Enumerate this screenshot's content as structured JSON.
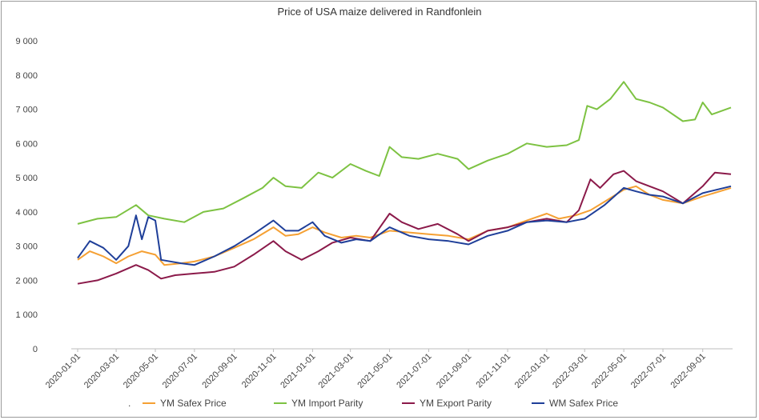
{
  "chart_data": {
    "type": "line",
    "title": "Price of USA maize delivered in Randfonlein",
    "xlabel": "",
    "ylabel": "",
    "ylim": [
      0,
      9000
    ],
    "y_ticks": [
      0,
      1000,
      2000,
      3000,
      4000,
      5000,
      6000,
      7000,
      8000,
      9000
    ],
    "y_tick_labels": [
      "0",
      "1 000",
      "2 000",
      "3 000",
      "4 000",
      "5 000",
      "6 000",
      "7 000",
      "8 000",
      "9 000"
    ],
    "x_range": [
      "2020-01-01",
      "2022-10-15"
    ],
    "x_tick_labels": [
      "2020-01-01",
      "2020-03-01",
      "2020-05-01",
      "2020-07-01",
      "2020-09-01",
      "2020-11-01",
      "2021-01-01",
      "2021-03-01",
      "2021-05-01",
      "2021-07-01",
      "2021-09-01",
      "2021-11-01",
      "2022-01-01",
      "2022-03-01",
      "2022-05-01",
      "2022-07-01",
      "2022-09-01"
    ],
    "grid": false,
    "legend_position": "bottom",
    "legend_marker": ".",
    "series": [
      {
        "name": "YM Safex Price",
        "color": "#f5a033",
        "points": [
          [
            "2020-01-01",
            2600
          ],
          [
            "2020-01-20",
            2850
          ],
          [
            "2020-02-10",
            2700
          ],
          [
            "2020-03-01",
            2500
          ],
          [
            "2020-03-20",
            2700
          ],
          [
            "2020-04-10",
            2850
          ],
          [
            "2020-05-01",
            2750
          ],
          [
            "2020-05-15",
            2450
          ],
          [
            "2020-06-10",
            2500
          ],
          [
            "2020-07-01",
            2550
          ],
          [
            "2020-08-01",
            2700
          ],
          [
            "2020-09-01",
            2950
          ],
          [
            "2020-10-01",
            3200
          ],
          [
            "2020-11-01",
            3550
          ],
          [
            "2020-11-20",
            3300
          ],
          [
            "2020-12-10",
            3350
          ],
          [
            "2021-01-01",
            3550
          ],
          [
            "2021-01-20",
            3400
          ],
          [
            "2021-02-15",
            3250
          ],
          [
            "2021-03-10",
            3300
          ],
          [
            "2021-04-01",
            3250
          ],
          [
            "2021-05-01",
            3450
          ],
          [
            "2021-06-01",
            3400
          ],
          [
            "2021-07-01",
            3350
          ],
          [
            "2021-08-01",
            3300
          ],
          [
            "2021-09-01",
            3200
          ],
          [
            "2021-10-01",
            3450
          ],
          [
            "2021-11-01",
            3550
          ],
          [
            "2021-12-01",
            3750
          ],
          [
            "2022-01-01",
            3950
          ],
          [
            "2022-01-20",
            3800
          ],
          [
            "2022-02-15",
            3900
          ],
          [
            "2022-03-10",
            4050
          ],
          [
            "2022-04-01",
            4300
          ],
          [
            "2022-05-01",
            4650
          ],
          [
            "2022-05-20",
            4750
          ],
          [
            "2022-06-10",
            4500
          ],
          [
            "2022-07-01",
            4350
          ],
          [
            "2022-08-01",
            4250
          ],
          [
            "2022-09-01",
            4450
          ],
          [
            "2022-10-15",
            4700
          ]
        ]
      },
      {
        "name": "YM Import Parity",
        "color": "#7dc242",
        "points": [
          [
            "2020-01-01",
            3650
          ],
          [
            "2020-02-01",
            3800
          ],
          [
            "2020-03-01",
            3850
          ],
          [
            "2020-04-01",
            4200
          ],
          [
            "2020-04-20",
            3900
          ],
          [
            "2020-05-15",
            3800
          ],
          [
            "2020-06-15",
            3700
          ],
          [
            "2020-07-15",
            4000
          ],
          [
            "2020-08-15",
            4100
          ],
          [
            "2020-09-15",
            4400
          ],
          [
            "2020-10-15",
            4700
          ],
          [
            "2020-11-01",
            5000
          ],
          [
            "2020-11-20",
            4750
          ],
          [
            "2020-12-15",
            4700
          ],
          [
            "2021-01-10",
            5150
          ],
          [
            "2021-02-01",
            5000
          ],
          [
            "2021-03-01",
            5400
          ],
          [
            "2021-03-25",
            5200
          ],
          [
            "2021-04-15",
            5050
          ],
          [
            "2021-05-01",
            5900
          ],
          [
            "2021-05-20",
            5600
          ],
          [
            "2021-06-15",
            5550
          ],
          [
            "2021-07-15",
            5700
          ],
          [
            "2021-08-15",
            5550
          ],
          [
            "2021-09-01",
            5250
          ],
          [
            "2021-10-01",
            5500
          ],
          [
            "2021-11-01",
            5700
          ],
          [
            "2021-12-01",
            6000
          ],
          [
            "2022-01-01",
            5900
          ],
          [
            "2022-02-01",
            5950
          ],
          [
            "2022-02-20",
            6100
          ],
          [
            "2022-03-05",
            7100
          ],
          [
            "2022-03-20",
            7000
          ],
          [
            "2022-04-10",
            7300
          ],
          [
            "2022-05-01",
            7800
          ],
          [
            "2022-05-20",
            7300
          ],
          [
            "2022-06-10",
            7200
          ],
          [
            "2022-07-01",
            7050
          ],
          [
            "2022-08-01",
            6650
          ],
          [
            "2022-08-20",
            6700
          ],
          [
            "2022-09-01",
            7200
          ],
          [
            "2022-09-15",
            6850
          ],
          [
            "2022-10-15",
            7050
          ]
        ]
      },
      {
        "name": "YM Export Parity",
        "color": "#8b1a4a",
        "points": [
          [
            "2020-01-01",
            1900
          ],
          [
            "2020-02-01",
            2000
          ],
          [
            "2020-03-01",
            2200
          ],
          [
            "2020-04-01",
            2450
          ],
          [
            "2020-04-20",
            2300
          ],
          [
            "2020-05-10",
            2050
          ],
          [
            "2020-06-01",
            2150
          ],
          [
            "2020-07-01",
            2200
          ],
          [
            "2020-08-01",
            2250
          ],
          [
            "2020-09-01",
            2400
          ],
          [
            "2020-10-01",
            2750
          ],
          [
            "2020-11-01",
            3150
          ],
          [
            "2020-11-20",
            2850
          ],
          [
            "2020-12-15",
            2600
          ],
          [
            "2021-01-10",
            2850
          ],
          [
            "2021-02-01",
            3100
          ],
          [
            "2021-03-01",
            3250
          ],
          [
            "2021-04-01",
            3150
          ],
          [
            "2021-05-01",
            3950
          ],
          [
            "2021-05-20",
            3700
          ],
          [
            "2021-06-15",
            3500
          ],
          [
            "2021-07-15",
            3650
          ],
          [
            "2021-08-15",
            3350
          ],
          [
            "2021-09-01",
            3150
          ],
          [
            "2021-10-01",
            3450
          ],
          [
            "2021-11-01",
            3550
          ],
          [
            "2021-12-01",
            3700
          ],
          [
            "2022-01-01",
            3800
          ],
          [
            "2022-02-01",
            3700
          ],
          [
            "2022-02-20",
            4050
          ],
          [
            "2022-03-10",
            4950
          ],
          [
            "2022-03-25",
            4700
          ],
          [
            "2022-04-15",
            5100
          ],
          [
            "2022-05-01",
            5200
          ],
          [
            "2022-05-20",
            4900
          ],
          [
            "2022-06-10",
            4750
          ],
          [
            "2022-07-01",
            4600
          ],
          [
            "2022-08-01",
            4250
          ],
          [
            "2022-09-01",
            4750
          ],
          [
            "2022-09-20",
            5150
          ],
          [
            "2022-10-15",
            5100
          ]
        ]
      },
      {
        "name": "WM Safex Price",
        "color": "#1f3f99",
        "points": [
          [
            "2020-01-01",
            2650
          ],
          [
            "2020-01-20",
            3150
          ],
          [
            "2020-02-10",
            2950
          ],
          [
            "2020-03-01",
            2600
          ],
          [
            "2020-03-20",
            3000
          ],
          [
            "2020-04-01",
            3900
          ],
          [
            "2020-04-10",
            3200
          ],
          [
            "2020-04-20",
            3850
          ],
          [
            "2020-05-01",
            3750
          ],
          [
            "2020-05-10",
            2600
          ],
          [
            "2020-06-10",
            2500
          ],
          [
            "2020-07-01",
            2450
          ],
          [
            "2020-08-01",
            2700
          ],
          [
            "2020-09-01",
            3000
          ],
          [
            "2020-10-01",
            3350
          ],
          [
            "2020-11-01",
            3750
          ],
          [
            "2020-11-20",
            3450
          ],
          [
            "2020-12-10",
            3450
          ],
          [
            "2021-01-01",
            3700
          ],
          [
            "2021-01-20",
            3300
          ],
          [
            "2021-02-15",
            3100
          ],
          [
            "2021-03-10",
            3200
          ],
          [
            "2021-04-01",
            3150
          ],
          [
            "2021-05-01",
            3550
          ],
          [
            "2021-06-01",
            3300
          ],
          [
            "2021-07-01",
            3200
          ],
          [
            "2021-08-01",
            3150
          ],
          [
            "2021-09-01",
            3050
          ],
          [
            "2021-10-01",
            3300
          ],
          [
            "2021-11-01",
            3450
          ],
          [
            "2021-12-01",
            3700
          ],
          [
            "2022-01-01",
            3750
          ],
          [
            "2022-02-01",
            3700
          ],
          [
            "2022-03-01",
            3800
          ],
          [
            "2022-04-01",
            4200
          ],
          [
            "2022-05-01",
            4700
          ],
          [
            "2022-05-20",
            4600
          ],
          [
            "2022-06-10",
            4500
          ],
          [
            "2022-07-01",
            4450
          ],
          [
            "2022-08-01",
            4250
          ],
          [
            "2022-09-01",
            4550
          ],
          [
            "2022-10-15",
            4750
          ]
        ]
      }
    ]
  }
}
